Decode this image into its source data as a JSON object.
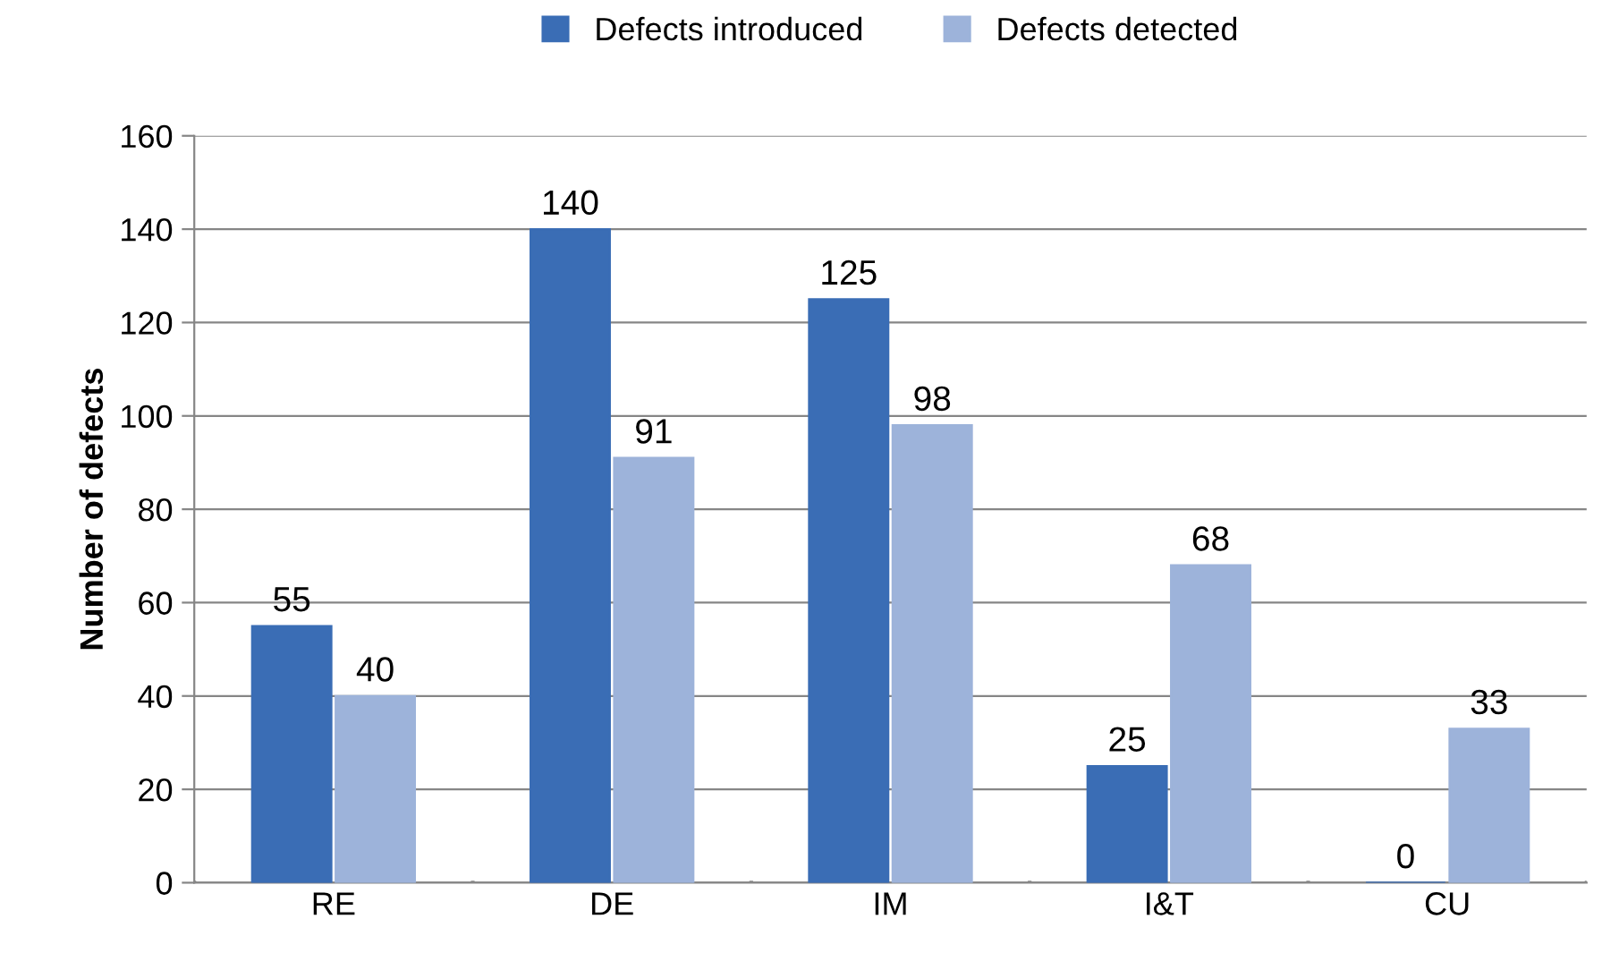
{
  "chart_data": {
    "type": "bar",
    "ylabel": "Number of defects",
    "categories": [
      "RE",
      "DE",
      "IM",
      "I&T",
      "CU"
    ],
    "series": [
      {
        "name": "Defects introduced",
        "color": "#3a6db5",
        "values": [
          55,
          140,
          125,
          25,
          0
        ]
      },
      {
        "name": "Defects detected",
        "color": "#9db3da",
        "values": [
          40,
          91,
          98,
          68,
          33
        ]
      }
    ],
    "ylim": [
      0,
      160
    ],
    "yticks": [
      0,
      20,
      40,
      60,
      80,
      100,
      120,
      140,
      160
    ],
    "grid": "y",
    "legend": "top",
    "data_labels": true
  }
}
